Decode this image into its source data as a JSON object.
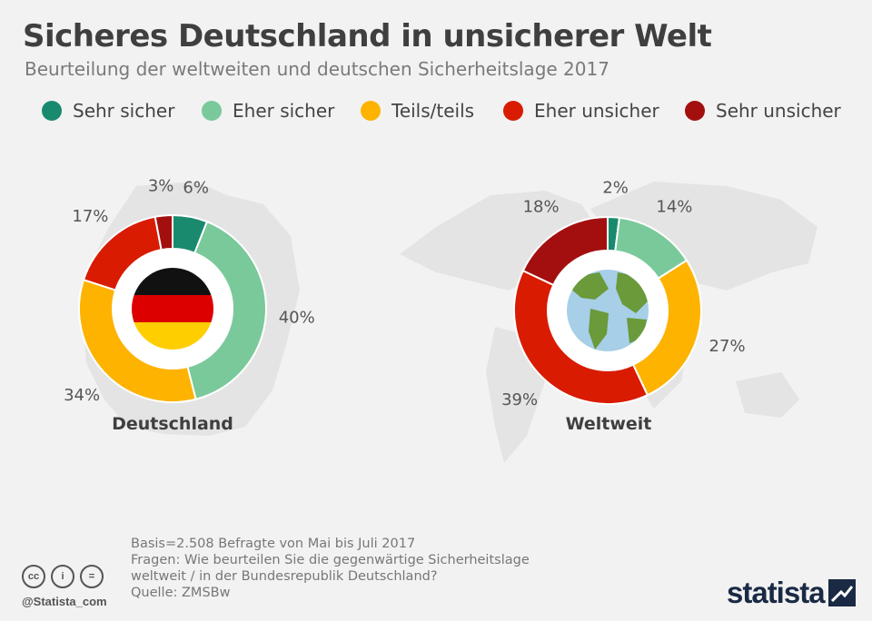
{
  "header": {
    "title": "Sicheres Deutschland in unsicherer Welt",
    "subtitle": "Beurteilung der weltweiten und deutschen Sicherheitslage 2017"
  },
  "legend": [
    {
      "label": "Sehr sicher",
      "color": "#1a8a6e"
    },
    {
      "label": "Eher sicher",
      "color": "#7ac99a"
    },
    {
      "label": "Teils/teils",
      "color": "#fdb300"
    },
    {
      "label": "Eher unsicher",
      "color": "#d91b02"
    },
    {
      "label": "Sehr unsicher",
      "color": "#a30f0f"
    }
  ],
  "chart_data": [
    {
      "type": "pie",
      "title": "Deutschland",
      "categories": [
        "Sehr sicher",
        "Eher sicher",
        "Teils/teils",
        "Eher unsicher",
        "Sehr unsicher"
      ],
      "values": [
        6,
        40,
        34,
        17,
        3
      ],
      "labels": [
        "6%",
        "40%",
        "34%",
        "17%",
        "3%"
      ],
      "colors": [
        "#1a8a6e",
        "#7ac99a",
        "#fdb300",
        "#d91b02",
        "#a30f0f"
      ],
      "center_icon": "germany-flag-icon"
    },
    {
      "type": "pie",
      "title": "Weltweit",
      "categories": [
        "Sehr sicher",
        "Eher sicher",
        "Teils/teils",
        "Eher unsicher",
        "Sehr unsicher"
      ],
      "values": [
        2,
        14,
        27,
        39,
        18
      ],
      "labels": [
        "2%",
        "14%",
        "27%",
        "39%",
        "18%"
      ],
      "colors": [
        "#1a8a6e",
        "#7ac99a",
        "#fdb300",
        "#d91b02",
        "#a30f0f"
      ],
      "center_icon": "globe-icon"
    }
  ],
  "footer": {
    "basis": "Basis=2.508 Befragte von Mai bis Juli 2017",
    "question_line1": "Fragen: Wie beurteilen Sie die gegenwärtige Sicherheitslage",
    "question_line2": "weltweit / in der Bundesrepublik Deutschland?",
    "source": "Quelle: ZMSBw",
    "handle": "@Statista_com",
    "logo": "statista"
  }
}
